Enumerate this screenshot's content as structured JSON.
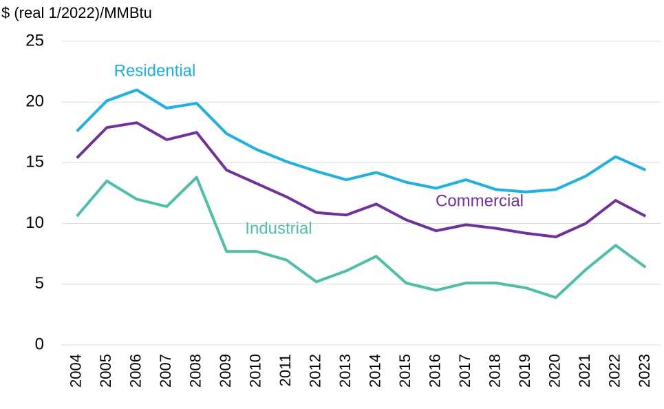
{
  "chart_data": {
    "type": "line",
    "y_axis_label": "$ (real 1/2022)/MMBtu",
    "categories": [
      "2004",
      "2005",
      "2006",
      "2007",
      "2008",
      "2009",
      "2010",
      "2011",
      "2012",
      "2013",
      "2014",
      "2015",
      "2016",
      "2017",
      "2018",
      "2019",
      "2020",
      "2021",
      "2022",
      "2023"
    ],
    "series": [
      {
        "name": "Residential",
        "color": "#1ab0e8",
        "values": [
          17.6,
          20.1,
          21.0,
          19.5,
          19.9,
          17.4,
          16.1,
          15.1,
          14.3,
          13.6,
          14.2,
          13.4,
          12.9,
          13.6,
          12.8,
          12.6,
          12.8,
          13.9,
          15.5,
          14.4
        ]
      },
      {
        "name": "Commercial",
        "color": "#7030a0",
        "values": [
          15.4,
          17.9,
          18.3,
          16.9,
          17.5,
          14.4,
          13.3,
          12.2,
          10.9,
          10.7,
          11.6,
          10.3,
          9.4,
          9.9,
          9.6,
          9.2,
          8.9,
          10.0,
          11.9,
          10.6
        ]
      },
      {
        "name": "Industrial",
        "color": "#4bc0a8",
        "values": [
          10.6,
          13.5,
          12.0,
          11.4,
          13.8,
          7.7,
          7.7,
          7.0,
          5.2,
          6.1,
          7.3,
          5.1,
          4.5,
          5.1,
          5.1,
          4.7,
          3.9,
          6.2,
          8.2,
          6.4
        ]
      }
    ],
    "ylim": [
      0,
      25
    ],
    "yticks": [
      0,
      5,
      10,
      15,
      20,
      25
    ],
    "grid": true
  }
}
